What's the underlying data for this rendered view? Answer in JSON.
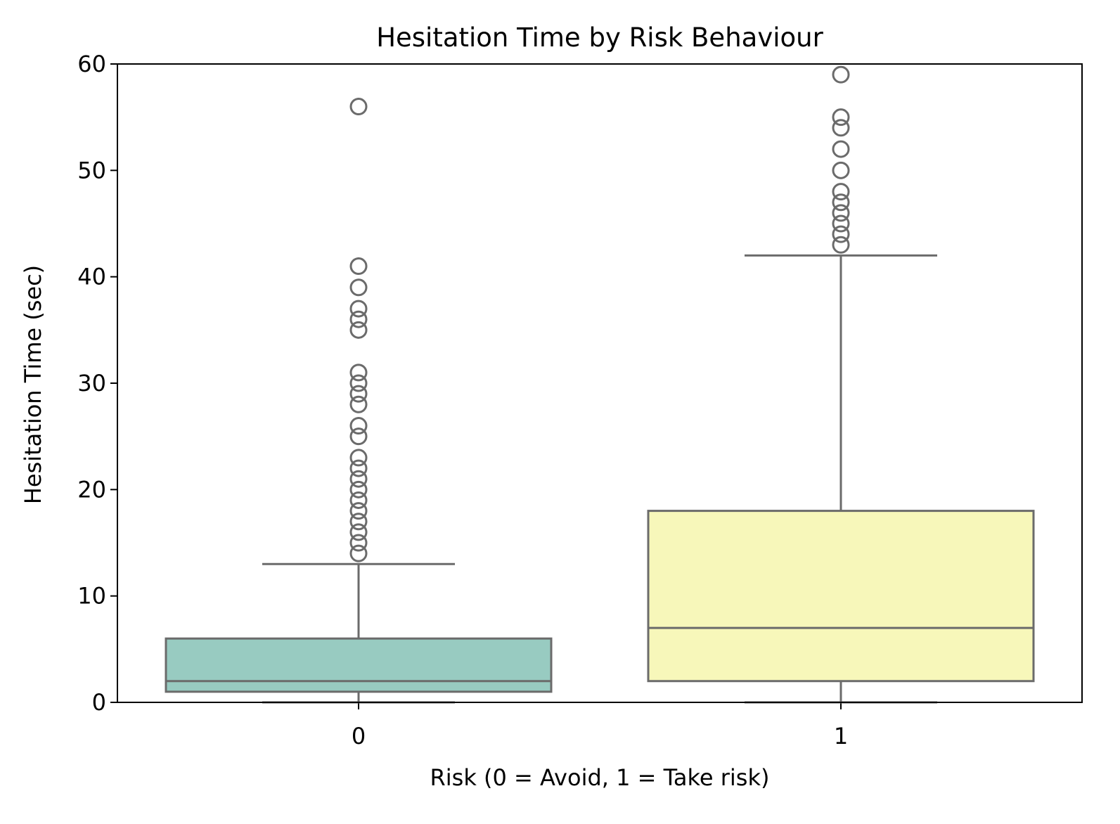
{
  "chart_data": {
    "type": "box",
    "title": "Hesitation Time by Risk Behaviour",
    "xlabel": "Risk (0 = Avoid, 1 = Take risk)",
    "ylabel": "Hesitation Time (sec)",
    "ylim": [
      0,
      60
    ],
    "yticks": [
      "0",
      "10",
      "20",
      "30",
      "40",
      "50",
      "60"
    ],
    "categories": [
      "0",
      "1"
    ],
    "grid": false,
    "legend": "none",
    "colors": {
      "axis": "#000000",
      "box_edge": "#6b6b6b",
      "outlier_edge": "#6b6b6b"
    },
    "series": [
      {
        "category": "0",
        "fill": "#98CBC1",
        "whisker_low": 0,
        "q1": 1,
        "median": 2,
        "q3": 6,
        "whisker_high": 13,
        "outliers": [
          14,
          15,
          16,
          17,
          18,
          19,
          20,
          21,
          22,
          23,
          25,
          26,
          28,
          29,
          30,
          31,
          35,
          36,
          37,
          39,
          41,
          56
        ]
      },
      {
        "category": "1",
        "fill": "#F7F7BA",
        "whisker_low": 0,
        "q1": 2,
        "median": 7,
        "q3": 18,
        "whisker_high": 42,
        "outliers": [
          43,
          44,
          45,
          46,
          47,
          48,
          50,
          52,
          54,
          55,
          59
        ]
      }
    ]
  }
}
